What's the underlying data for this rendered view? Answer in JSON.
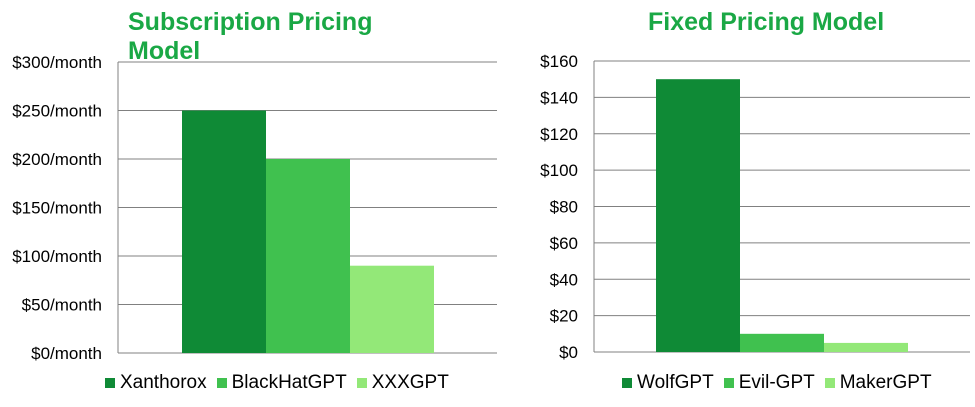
{
  "colors": {
    "title": "#1aa845",
    "grid": "#808080",
    "axis_text": "#000000"
  },
  "chart_data": [
    {
      "type": "bar",
      "title": "Subscription Pricing Model",
      "xlabel": "",
      "ylabel": "",
      "ylim": [
        0,
        300
      ],
      "yticks": [
        0,
        50,
        100,
        150,
        200,
        250,
        300
      ],
      "ytick_labels": [
        "$0/month",
        "$50/month",
        "$100/month",
        "$150/month",
        "$200/month",
        "$250/month",
        "$300/month"
      ],
      "grid": true,
      "legend_position": "bottom",
      "series": [
        {
          "name": "Xanthorox",
          "value": 250,
          "color": "#0f8a36"
        },
        {
          "name": "BlackHatGPT",
          "value": 200,
          "color": "#40c14f"
        },
        {
          "name": "XXXGPT",
          "value": 90,
          "color": "#93e878"
        }
      ]
    },
    {
      "type": "bar",
      "title": "Fixed Pricing Model",
      "xlabel": "",
      "ylabel": "",
      "ylim": [
        0,
        160
      ],
      "yticks": [
        0,
        20,
        40,
        60,
        80,
        100,
        120,
        140,
        160
      ],
      "ytick_labels": [
        "$0",
        "$20",
        "$40",
        "$60",
        "$80",
        "$100",
        "$120",
        "$140",
        "$160"
      ],
      "grid": true,
      "legend_position": "bottom",
      "series": [
        {
          "name": "WolfGPT",
          "value": 150,
          "color": "#0f8a36"
        },
        {
          "name": "Evil-GPT",
          "value": 10,
          "color": "#40c14f"
        },
        {
          "name": "MakerGPT",
          "value": 5,
          "color": "#93e878"
        }
      ]
    }
  ]
}
